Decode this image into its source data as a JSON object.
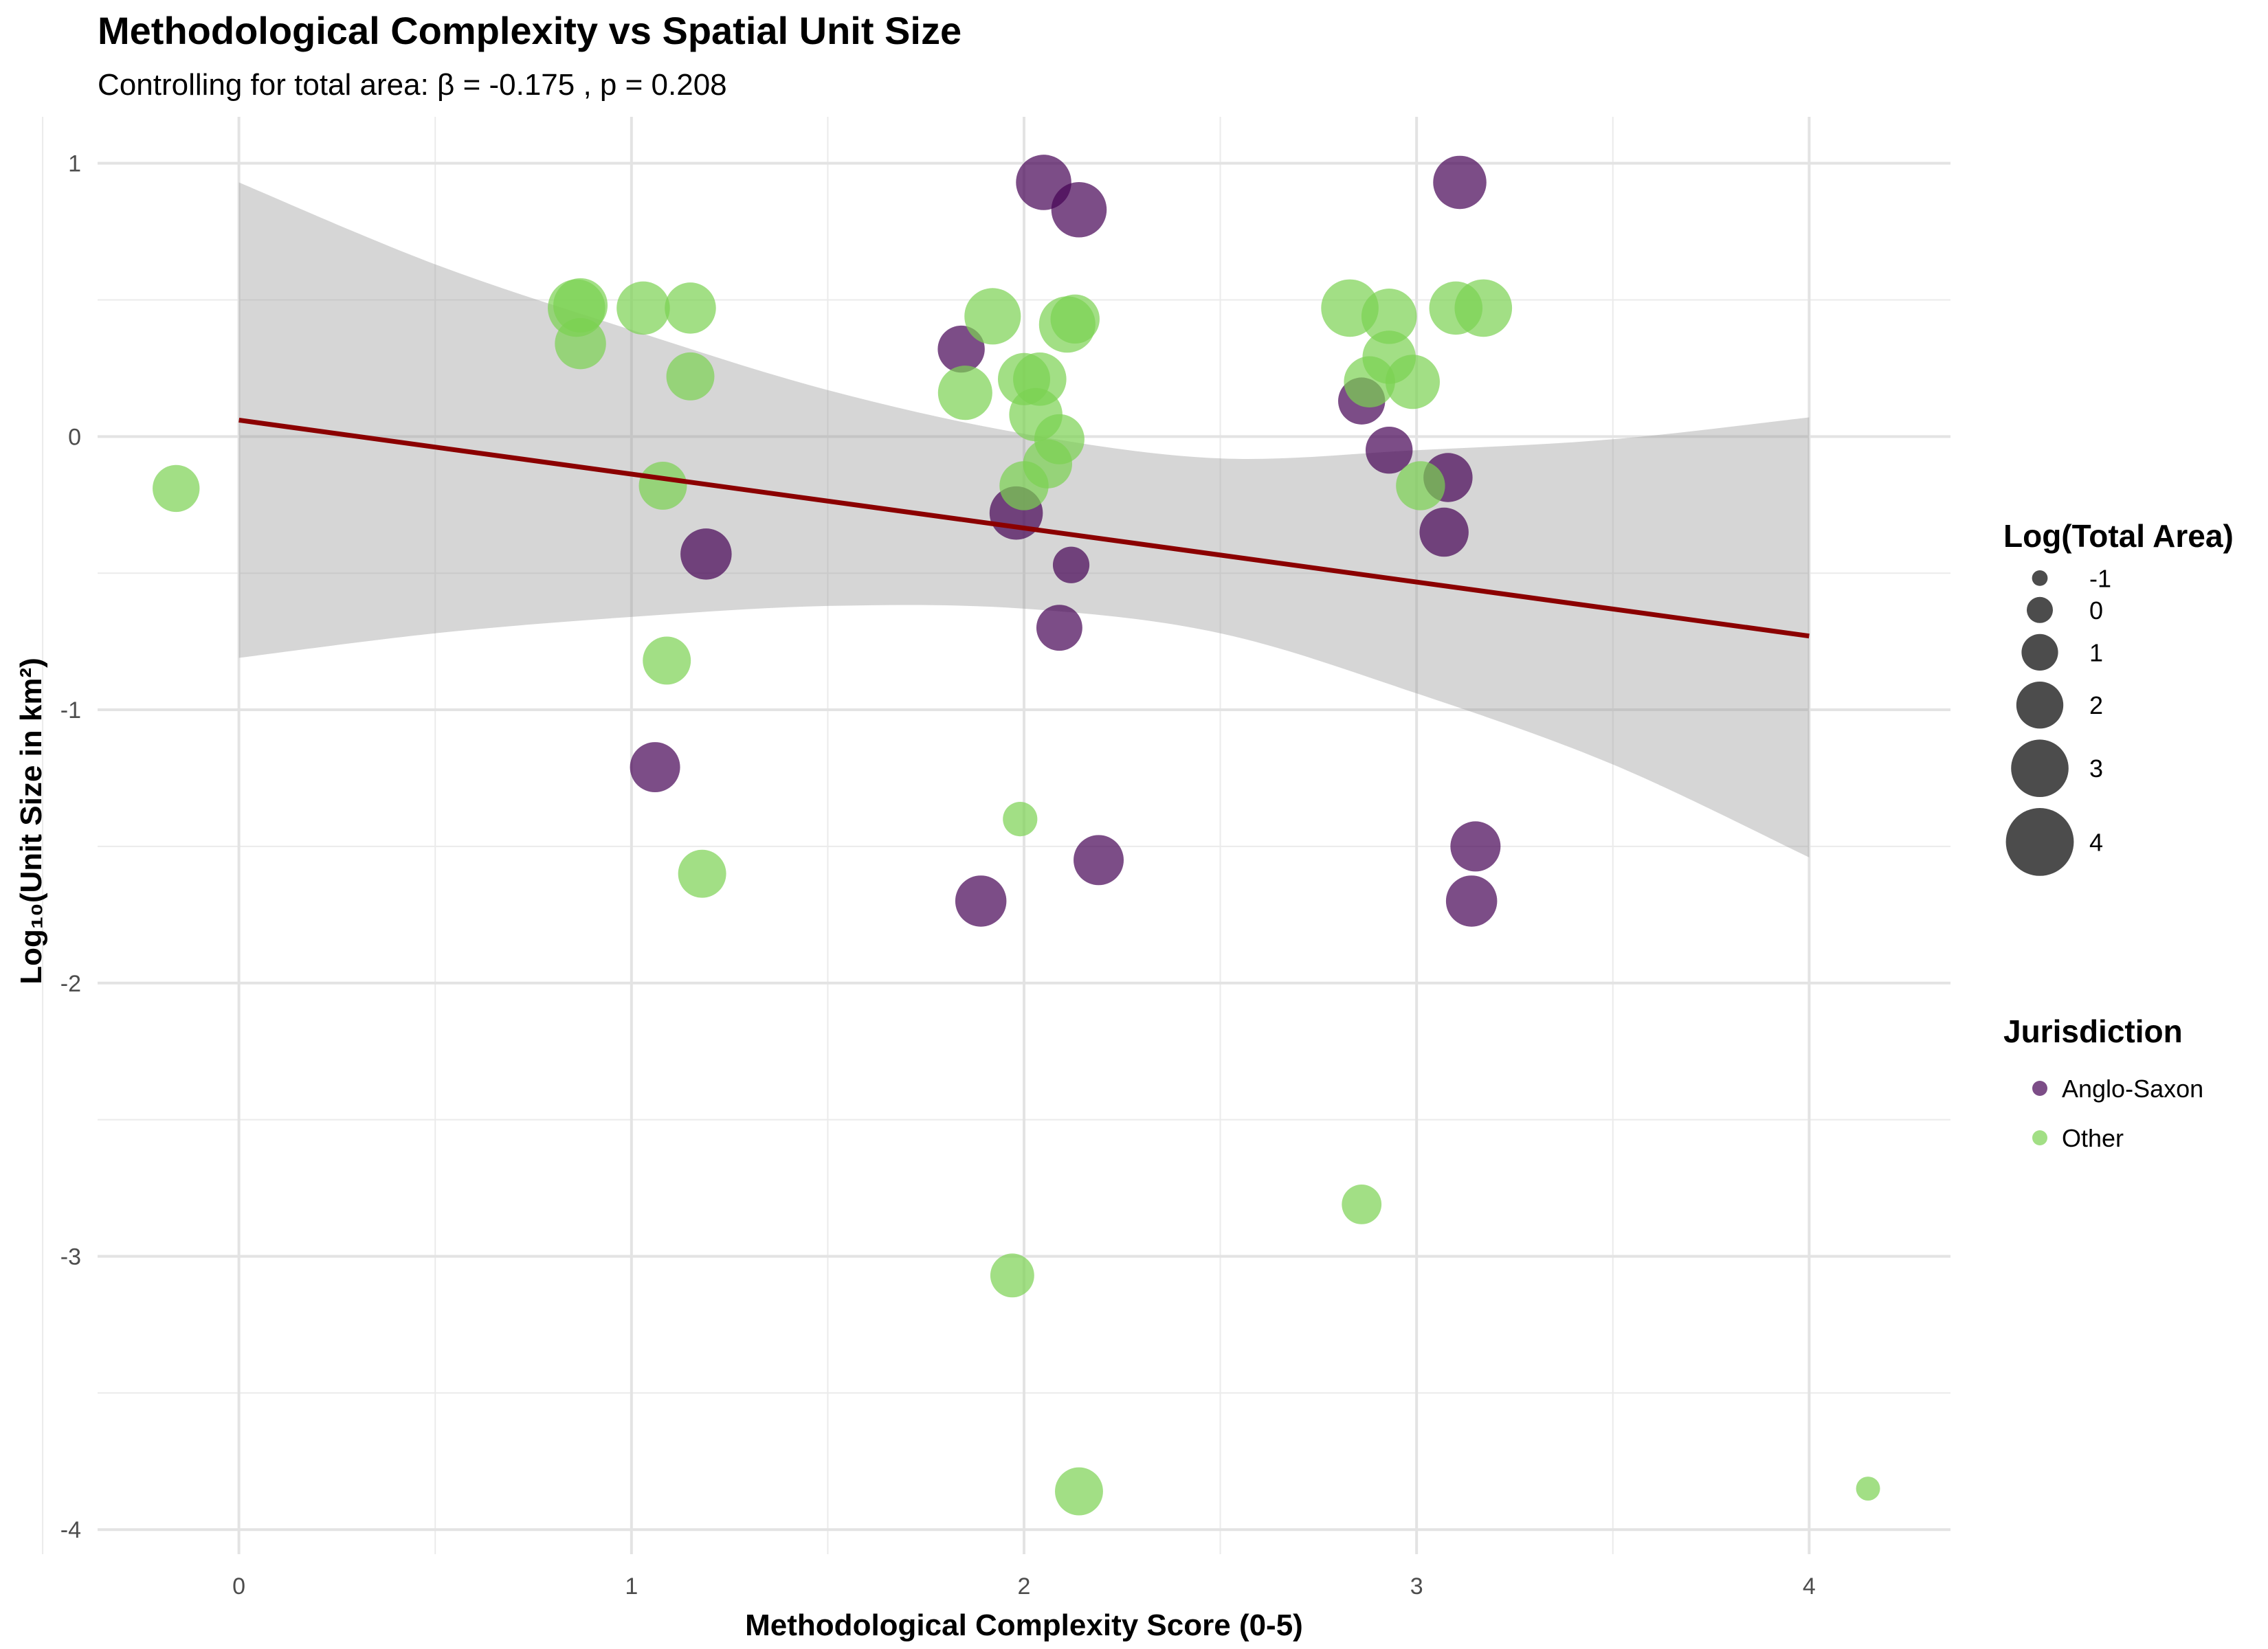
{
  "chart_data": {
    "type": "scatter",
    "title": "Methodological Complexity vs Spatial Unit Size",
    "subtitle": "Controlling for total area: β = -0.175 , p = 0.208",
    "xlabel": "Methodological Complexity Score (0-5)",
    "ylabel": "Log₁₀(Unit Size in km²)",
    "xlim": [
      -0.36,
      4.36
    ],
    "ylim": [
      -4.09,
      1.17
    ],
    "x_ticks": [
      "0",
      "1",
      "2",
      "3",
      "4"
    ],
    "y_ticks": [
      "1",
      "0",
      "-1",
      "-2",
      "-3",
      "-4"
    ],
    "grid": true,
    "colors": {
      "Anglo-Saxon": "#440154",
      "Other": "#7AD151",
      "trend": "#8B0000",
      "ribbon": "#999999"
    },
    "trend_line": {
      "x": [
        0,
        4
      ],
      "y": [
        0.06,
        -0.73
      ]
    },
    "confidence_band": {
      "x": [
        0,
        0.5,
        1,
        1.5,
        2,
        2.5,
        3,
        3.5,
        4
      ],
      "upper": [
        0.93,
        0.63,
        0.39,
        0.17,
        0.01,
        -0.08,
        -0.05,
        -0.01,
        0.07
      ],
      "lower": [
        -0.81,
        -0.72,
        -0.66,
        -0.62,
        -0.63,
        -0.72,
        -0.94,
        -1.2,
        -1.54
      ]
    },
    "size_legend": {
      "title": "Log(Total Area)",
      "labels": [
        "-1",
        "0",
        "1",
        "2",
        "3",
        "4"
      ],
      "values": [
        -1,
        0,
        1,
        2,
        3,
        4
      ]
    },
    "color_legend": {
      "title": "Jurisdiction",
      "labels": [
        "Anglo-Saxon",
        "Other"
      ]
    },
    "series": [
      {
        "name": "Anglo-Saxon",
        "points": [
          {
            "x": 2.05,
            "y": 0.93,
            "size": 2.8
          },
          {
            "x": 2.14,
            "y": 0.83,
            "size": 2.8
          },
          {
            "x": 3.11,
            "y": 0.93,
            "size": 2.6
          },
          {
            "x": 1.84,
            "y": 0.32,
            "size": 2.0
          },
          {
            "x": 2.86,
            "y": 0.13,
            "size": 2.0
          },
          {
            "x": 2.93,
            "y": -0.05,
            "size": 2.0
          },
          {
            "x": 3.08,
            "y": -0.15,
            "size": 2.2
          },
          {
            "x": 3.07,
            "y": -0.35,
            "size": 2.2
          },
          {
            "x": 1.98,
            "y": -0.28,
            "size": 2.6
          },
          {
            "x": 1.19,
            "y": -0.43,
            "size": 2.4
          },
          {
            "x": 2.12,
            "y": -0.47,
            "size": 1.0
          },
          {
            "x": 2.09,
            "y": -0.7,
            "size": 1.9
          },
          {
            "x": 1.06,
            "y": -1.21,
            "size": 2.3
          },
          {
            "x": 3.15,
            "y": -1.5,
            "size": 2.3
          },
          {
            "x": 2.19,
            "y": -1.55,
            "size": 2.3
          },
          {
            "x": 1.89,
            "y": -1.7,
            "size": 2.4
          },
          {
            "x": 3.14,
            "y": -1.7,
            "size": 2.4
          }
        ]
      },
      {
        "name": "Other",
        "points": [
          {
            "x": 0.86,
            "y": 0.47,
            "size": 3.0
          },
          {
            "x": 0.87,
            "y": 0.48,
            "size": 2.7
          },
          {
            "x": 1.03,
            "y": 0.47,
            "size": 2.6
          },
          {
            "x": 1.15,
            "y": 0.47,
            "size": 2.4
          },
          {
            "x": 0.87,
            "y": 0.34,
            "size": 2.4
          },
          {
            "x": 1.15,
            "y": 0.22,
            "size": 2.1
          },
          {
            "x": 1.08,
            "y": -0.18,
            "size": 2.1
          },
          {
            "x": 1.09,
            "y": -0.82,
            "size": 2.1
          },
          {
            "x": 1.18,
            "y": -1.6,
            "size": 2.1
          },
          {
            "x": -0.16,
            "y": -0.19,
            "size": 2.0
          },
          {
            "x": 1.92,
            "y": 0.44,
            "size": 2.9
          },
          {
            "x": 2.11,
            "y": 0.41,
            "size": 2.9
          },
          {
            "x": 2.13,
            "y": 0.43,
            "size": 2.2
          },
          {
            "x": 1.85,
            "y": 0.16,
            "size": 2.7
          },
          {
            "x": 2.0,
            "y": 0.21,
            "size": 2.5
          },
          {
            "x": 2.04,
            "y": 0.21,
            "size": 2.6
          },
          {
            "x": 2.03,
            "y": 0.08,
            "size": 2.6
          },
          {
            "x": 2.09,
            "y": -0.01,
            "size": 2.3
          },
          {
            "x": 2.06,
            "y": -0.1,
            "size": 2.2
          },
          {
            "x": 2.0,
            "y": -0.18,
            "size": 2.2
          },
          {
            "x": 1.99,
            "y": -1.4,
            "size": 0.8
          },
          {
            "x": 1.97,
            "y": -3.07,
            "size": 1.7
          },
          {
            "x": 2.14,
            "y": -3.86,
            "size": 2.1
          },
          {
            "x": 2.83,
            "y": 0.47,
            "size": 3.0
          },
          {
            "x": 2.93,
            "y": 0.44,
            "size": 2.8
          },
          {
            "x": 2.93,
            "y": 0.29,
            "size": 2.6
          },
          {
            "x": 2.88,
            "y": 0.2,
            "size": 2.4
          },
          {
            "x": 2.99,
            "y": 0.2,
            "size": 2.7
          },
          {
            "x": 3.01,
            "y": -0.18,
            "size": 2.2
          },
          {
            "x": 3.1,
            "y": 0.47,
            "size": 2.6
          },
          {
            "x": 3.17,
            "y": 0.47,
            "size": 3.0
          },
          {
            "x": 2.86,
            "y": -2.81,
            "size": 1.3
          },
          {
            "x": 4.15,
            "y": -3.85,
            "size": -0.2
          }
        ]
      }
    ]
  }
}
